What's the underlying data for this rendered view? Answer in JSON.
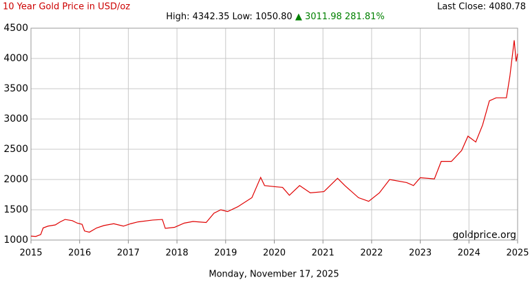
{
  "chart_data": {
    "type": "line",
    "title": "10 Year Gold Price in USD/oz",
    "last_close": "Last Close: 4080.78",
    "high": "High: 4342.35",
    "low": "Low: 1050.80",
    "change": "▲ 3011.98 281.81%",
    "watermark": "goldprice.org",
    "date": "Monday, November 17, 2025",
    "x": [
      2015.0,
      2015.1,
      2015.2,
      2015.25,
      2015.35,
      2015.5,
      2015.6,
      2015.7,
      2015.85,
      2015.95,
      2016.05,
      2016.1,
      2016.2,
      2016.35,
      2016.5,
      2016.7,
      2016.9,
      2017.05,
      2017.2,
      2017.5,
      2017.7,
      2017.76,
      2017.95,
      2018.15,
      2018.33,
      2018.6,
      2018.76,
      2018.9,
      2019.04,
      2019.25,
      2019.54,
      2019.72,
      2019.8,
      2020.03,
      2020.17,
      2020.31,
      2020.52,
      2020.74,
      2021.02,
      2021.3,
      2021.45,
      2021.73,
      2021.94,
      2022.16,
      2022.37,
      2022.72,
      2022.86,
      2023.0,
      2023.29,
      2023.43,
      2023.64,
      2023.85,
      2023.98,
      2024.14,
      2024.28,
      2024.42,
      2024.56,
      2024.77,
      2024.84,
      2024.93,
      2024.97,
      2025.0
    ],
    "series": [
      {
        "name": "Gold",
        "color": "#e00000",
        "values": [
          1065,
          1060,
          1090,
          1200,
          1230,
          1250,
          1300,
          1340,
          1320,
          1280,
          1260,
          1150,
          1130,
          1200,
          1240,
          1270,
          1230,
          1270,
          1300,
          1330,
          1340,
          1193,
          1210,
          1280,
          1307,
          1290,
          1443,
          1500,
          1470,
          1550,
          1700,
          2035,
          1900,
          1880,
          1870,
          1740,
          1900,
          1780,
          1800,
          2020,
          1900,
          1700,
          1640,
          1780,
          2000,
          1950,
          1900,
          2030,
          2010,
          2300,
          2300,
          2480,
          2716,
          2620,
          2900,
          3300,
          3350,
          3350,
          3700,
          4300,
          3950,
          4080
        ]
      }
    ],
    "xlim": [
      2015,
      2025
    ],
    "xticks": [
      2015,
      2016,
      2017,
      2018,
      2019,
      2020,
      2021,
      2022,
      2023,
      2024,
      2025
    ],
    "ylim": [
      1000,
      4500
    ],
    "yticks": [
      1000,
      1500,
      2000,
      2500,
      3000,
      3500,
      4000,
      4500
    ],
    "grid": true
  }
}
